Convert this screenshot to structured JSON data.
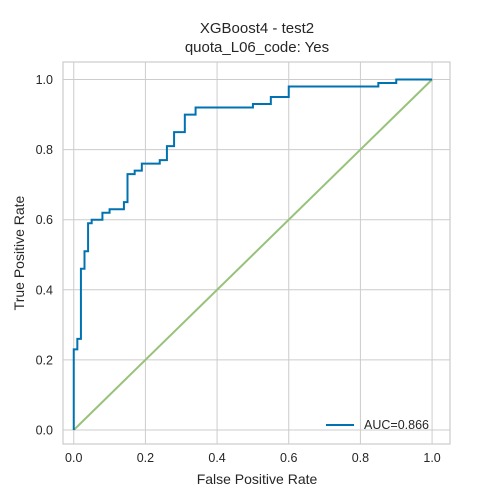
{
  "chart_data": {
    "type": "line",
    "title": "XGBoost4 - test2",
    "subtitle": "quota_L06_code: Yes",
    "xlabel": "False Positive Rate",
    "ylabel": "True Positive Rate",
    "xlim": [
      -0.03,
      1.05
    ],
    "ylim": [
      -0.04,
      1.05
    ],
    "xticks": [
      0.0,
      0.2,
      0.4,
      0.6,
      0.8,
      1.0
    ],
    "yticks": [
      0.0,
      0.2,
      0.4,
      0.6,
      0.8,
      1.0
    ],
    "xtick_labels": [
      "0.0",
      "0.2",
      "0.4",
      "0.6",
      "0.8",
      "1.0"
    ],
    "ytick_labels": [
      "0.0",
      "0.2",
      "0.4",
      "0.6",
      "0.8",
      "1.0"
    ],
    "grid": true,
    "legend_position": "lower-right",
    "series": [
      {
        "name": "AUC=0.866",
        "color": "#0072B2",
        "x": [
          0.0,
          0.0,
          0.01,
          0.01,
          0.02,
          0.02,
          0.03,
          0.03,
          0.04,
          0.04,
          0.05,
          0.05,
          0.08,
          0.08,
          0.1,
          0.1,
          0.14,
          0.14,
          0.15,
          0.15,
          0.17,
          0.17,
          0.19,
          0.19,
          0.24,
          0.24,
          0.26,
          0.26,
          0.28,
          0.28,
          0.31,
          0.31,
          0.34,
          0.34,
          0.5,
          0.5,
          0.55,
          0.55,
          0.6,
          0.6,
          0.85,
          0.85,
          0.9,
          0.9,
          0.98,
          0.98,
          1.0
        ],
        "y": [
          0.0,
          0.23,
          0.23,
          0.26,
          0.26,
          0.46,
          0.46,
          0.51,
          0.51,
          0.59,
          0.59,
          0.6,
          0.6,
          0.62,
          0.62,
          0.63,
          0.63,
          0.65,
          0.65,
          0.73,
          0.73,
          0.74,
          0.74,
          0.76,
          0.76,
          0.77,
          0.77,
          0.81,
          0.81,
          0.85,
          0.85,
          0.9,
          0.9,
          0.92,
          0.92,
          0.93,
          0.93,
          0.95,
          0.95,
          0.98,
          0.98,
          0.99,
          0.99,
          1.0,
          1.0,
          1.0,
          1.0
        ]
      },
      {
        "color": "#97C27A",
        "x": [
          0.0,
          1.0
        ],
        "y": [
          0.0,
          1.0
        ]
      }
    ]
  }
}
